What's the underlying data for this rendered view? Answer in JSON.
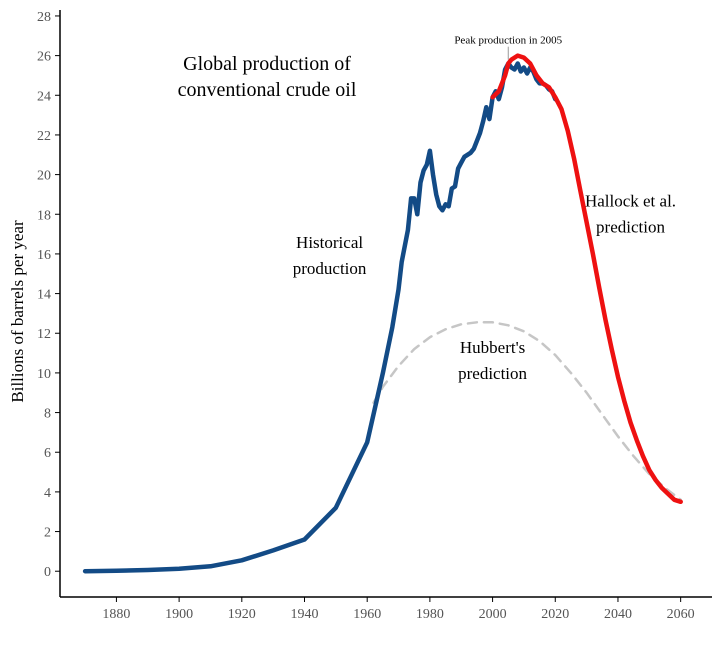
{
  "chart_data": {
    "type": "line",
    "title_lines": [
      "Global production of",
      "conventional crude oil"
    ],
    "xlabel": "",
    "ylabel": "Billions of barrels per year",
    "xlim": [
      1862,
      2070
    ],
    "ylim": [
      -1.3,
      28.3
    ],
    "x_ticks": [
      1880,
      1900,
      1920,
      1940,
      1960,
      1980,
      2000,
      2020,
      2040,
      2060
    ],
    "y_ticks": [
      0,
      2,
      4,
      6,
      8,
      10,
      12,
      14,
      16,
      18,
      20,
      22,
      24,
      26,
      28
    ],
    "grid": false,
    "series": [
      {
        "name": "Historical production",
        "color": "#134b86",
        "style": "solid",
        "points": [
          [
            1870,
            0
          ],
          [
            1880,
            0.02
          ],
          [
            1890,
            0.06
          ],
          [
            1900,
            0.12
          ],
          [
            1910,
            0.25
          ],
          [
            1920,
            0.55
          ],
          [
            1930,
            1.05
          ],
          [
            1940,
            1.6
          ],
          [
            1950,
            3.2
          ],
          [
            1960,
            6.5
          ],
          [
            1965,
            10.0
          ],
          [
            1968,
            12.3
          ],
          [
            1970,
            14.2
          ],
          [
            1971,
            15.6
          ],
          [
            1973,
            17.2
          ],
          [
            1974,
            18.8
          ],
          [
            1975,
            18.8
          ],
          [
            1976,
            18.0
          ],
          [
            1977,
            19.6
          ],
          [
            1978,
            20.2
          ],
          [
            1979,
            20.5
          ],
          [
            1980,
            21.2
          ],
          [
            1981,
            20.0
          ],
          [
            1982,
            19.0
          ],
          [
            1983,
            18.4
          ],
          [
            1984,
            18.2
          ],
          [
            1985,
            18.5
          ],
          [
            1986,
            18.4
          ],
          [
            1987,
            19.3
          ],
          [
            1988,
            19.4
          ],
          [
            1989,
            20.3
          ],
          [
            1990,
            20.6
          ],
          [
            1991,
            20.9
          ],
          [
            1992,
            21.0
          ],
          [
            1993,
            21.1
          ],
          [
            1994,
            21.3
          ],
          [
            1995,
            21.7
          ],
          [
            1996,
            22.1
          ],
          [
            1997,
            22.7
          ],
          [
            1998,
            23.4
          ],
          [
            1999,
            22.8
          ],
          [
            2000,
            23.9
          ],
          [
            2001,
            24.2
          ],
          [
            2002,
            23.8
          ],
          [
            2003,
            24.4
          ],
          [
            2004,
            25.3
          ],
          [
            2005,
            25.6
          ],
          [
            2006,
            25.4
          ],
          [
            2007,
            25.3
          ],
          [
            2008,
            25.6
          ],
          [
            2009,
            25.2
          ],
          [
            2010,
            25.4
          ],
          [
            2011,
            25.1
          ],
          [
            2012,
            25.4
          ],
          [
            2013,
            25.2
          ],
          [
            2014,
            24.8
          ],
          [
            2015,
            24.6
          ],
          [
            2016,
            24.6
          ],
          [
            2017,
            24.5
          ],
          [
            2018,
            24.3
          ],
          [
            2019,
            24.2
          ],
          [
            2020,
            23.8
          ]
        ]
      },
      {
        "name": "Hallock et al. prediction",
        "color": "#ee1111",
        "style": "solid",
        "points": [
          [
            2000,
            23.9
          ],
          [
            2002,
            24.2
          ],
          [
            2004,
            25.0
          ],
          [
            2005,
            25.6
          ],
          [
            2006,
            25.8
          ],
          [
            2008,
            26.0
          ],
          [
            2010,
            25.9
          ],
          [
            2012,
            25.6
          ],
          [
            2014,
            25.0
          ],
          [
            2016,
            24.6
          ],
          [
            2018,
            24.4
          ],
          [
            2020,
            23.9
          ],
          [
            2022,
            23.3
          ],
          [
            2024,
            22.2
          ],
          [
            2026,
            20.8
          ],
          [
            2028,
            19.2
          ],
          [
            2030,
            17.6
          ],
          [
            2032,
            16.0
          ],
          [
            2034,
            14.3
          ],
          [
            2036,
            12.7
          ],
          [
            2038,
            11.2
          ],
          [
            2040,
            9.8
          ],
          [
            2042,
            8.6
          ],
          [
            2044,
            7.5
          ],
          [
            2046,
            6.6
          ],
          [
            2048,
            5.8
          ],
          [
            2050,
            5.1
          ],
          [
            2052,
            4.6
          ],
          [
            2054,
            4.2
          ],
          [
            2056,
            3.9
          ],
          [
            2058,
            3.6
          ],
          [
            2060,
            3.5
          ]
        ]
      },
      {
        "name": "Hubbert's prediction",
        "color": "#c6c6c6",
        "style": "dashed",
        "points": [
          [
            1962,
            8.5
          ],
          [
            1965,
            9.3
          ],
          [
            1970,
            10.35
          ],
          [
            1975,
            11.2
          ],
          [
            1980,
            11.8
          ],
          [
            1985,
            12.2
          ],
          [
            1990,
            12.45
          ],
          [
            1995,
            12.55
          ],
          [
            2000,
            12.55
          ],
          [
            2005,
            12.4
          ],
          [
            2010,
            12.1
          ],
          [
            2015,
            11.6
          ],
          [
            2020,
            10.9
          ],
          [
            2025,
            10.0
          ],
          [
            2030,
            9.0
          ],
          [
            2035,
            7.9
          ],
          [
            2040,
            6.8
          ],
          [
            2045,
            5.8
          ],
          [
            2050,
            4.9
          ],
          [
            2055,
            4.2
          ],
          [
            2060,
            3.6
          ]
        ]
      }
    ],
    "annotations": [
      {
        "name": "historical-production-label",
        "lines": [
          "Historical",
          "production"
        ],
        "anchor": [
          1948,
          16.3
        ]
      },
      {
        "name": "hubberts-prediction-label",
        "lines": [
          "Hubbert's",
          "prediction"
        ],
        "anchor": [
          2000,
          11.0
        ]
      },
      {
        "name": "hallock-prediction-label",
        "lines": [
          "Hallock et al.",
          "prediction"
        ],
        "anchor": [
          2044,
          18.4
        ]
      },
      {
        "name": "peak-production-label",
        "lines": [
          "Peak production in 2005"
        ],
        "anchor": [
          2005,
          26.6
        ]
      }
    ]
  }
}
